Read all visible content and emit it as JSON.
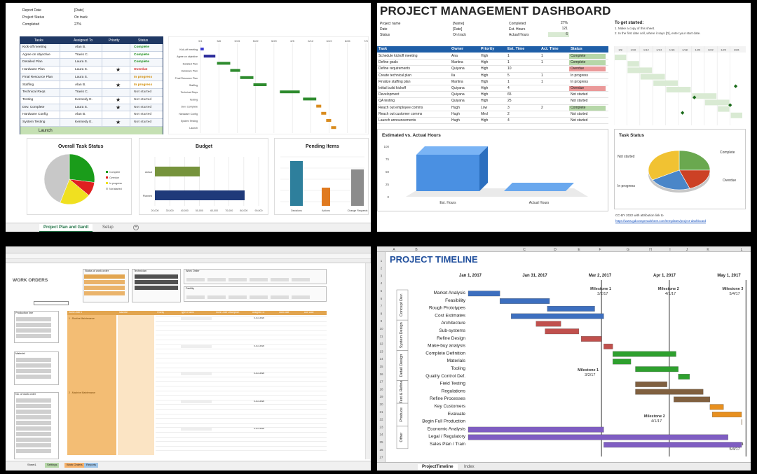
{
  "q1": {
    "info": {
      "report_date_label": "Report Date",
      "report_date_value": "[Date]",
      "project_status_label": "Project Status",
      "project_status_value": "On track",
      "completed_label": "Completed",
      "completed_value": "27%"
    },
    "table": {
      "headers": [
        "Tasks",
        "Assigned To",
        "Priority",
        "Status"
      ],
      "rows": [
        {
          "task": "Kick-off meeting",
          "assigned": "Alan B.",
          "star": false,
          "status": "Complete"
        },
        {
          "task": "Agree on objective",
          "assigned": "Travis C.",
          "star": false,
          "status": "Complete"
        },
        {
          "task": "Detailed Plan",
          "assigned": "Laura S.",
          "star": false,
          "status": "Complete"
        },
        {
          "task": "Hardware Plan",
          "assigned": "Laura S.",
          "star": true,
          "status": "Overdue"
        },
        {
          "task": "Final Resource Plan",
          "assigned": "Laura S.",
          "star": false,
          "status": "In progress"
        },
        {
          "task": "Staffing",
          "assigned": "Alan B.",
          "star": true,
          "status": "In progress"
        },
        {
          "task": "Technical Reqs",
          "assigned": "Travis C.",
          "star": false,
          "status": "Not started"
        },
        {
          "task": "Testing",
          "assigned": "Kennedy E.",
          "star": true,
          "status": "Not started"
        },
        {
          "task": "Dev. Complete",
          "assigned": "Laura S.",
          "star": true,
          "status": "Not started"
        },
        {
          "task": "Hardware Config",
          "assigned": "Alan B.",
          "star": false,
          "status": "Not started"
        },
        {
          "task": "System Testing",
          "assigned": "Kennedy E.",
          "star": true,
          "status": "Not started"
        }
      ],
      "launch": "Launch"
    },
    "gantt": {
      "dates": [
        "5/1",
        "5/8",
        "5/15",
        "5/22",
        "5/29",
        "6/5",
        "6/12",
        "6/19",
        "6/26",
        "7/3"
      ],
      "labels": [
        "Kick-off meeting",
        "Agree on objective",
        "Detailed Plan",
        "Hardware Plan",
        "Final Resource Plan",
        "Staffing",
        "Technical Reqs",
        "Testing",
        "Dev. Complete",
        "Hardware Config",
        "System Testing",
        "Launch"
      ],
      "bars": [
        [
          0,
          2,
          "#3b3bd1"
        ],
        [
          2,
          9,
          "#2a2a9a"
        ],
        [
          10,
          18,
          "#2e8b2e"
        ],
        [
          18,
          24,
          "#2e8b2e"
        ],
        [
          24,
          32,
          "#2e8b2e"
        ],
        [
          32,
          40,
          "#2e8b2e"
        ],
        [
          48,
          60,
          "#2e8b2e"
        ],
        [
          62,
          70,
          "#2e8b2e"
        ],
        [
          70,
          73,
          "#d98c1f"
        ],
        [
          73,
          76,
          "#d98c1f"
        ],
        [
          76,
          79,
          "#d98c1f"
        ],
        [
          79,
          82,
          "#d98c1f"
        ]
      ]
    },
    "status_chart": {
      "title": "Overall Task Status",
      "legend": [
        "Complete",
        "Overdue",
        "In progress",
        "Not started"
      ],
      "colors": [
        "#1a9c1a",
        "#e02020",
        "#f0e020",
        "#c8c8c8"
      ]
    },
    "budget_chart": {
      "title": "Budget",
      "categories": [
        "Actual",
        "Planned"
      ],
      "ticks": [
        "20,000",
        "30,000",
        "40,000",
        "50,000",
        "60,000",
        "70,000",
        "80,000",
        "90,000"
      ]
    },
    "pending_chart": {
      "title": "Pending Items",
      "categories": [
        "Decisions",
        "Actions",
        "Change Requests"
      ]
    },
    "tabs": [
      "Project Plan and Gantt",
      "Setup"
    ]
  },
  "q2": {
    "title": "PROJECT MANAGEMENT DASHBOARD",
    "info_left": [
      [
        "Project name",
        "[Name]"
      ],
      [
        "Date",
        "[Date]"
      ],
      [
        "Status",
        "On track"
      ]
    ],
    "info_right": [
      [
        "Completed",
        "27%"
      ],
      [
        "Est. Hours",
        "121"
      ],
      [
        "Actual Hours",
        "6"
      ]
    ],
    "get_started": {
      "title": "To get started:",
      "line1": "1. Make a copy of this sheet.",
      "line2": "2. In the first date cell, where it says [D], enter your start date."
    },
    "headers": [
      "Task",
      "Owner",
      "Priority",
      "Est. Time",
      "Act. Time",
      "Status"
    ],
    "rows": [
      [
        "Schedule kickoff meeting",
        "Ana",
        "High",
        "1",
        "1",
        "Complete"
      ],
      [
        "Define goals",
        "Martina",
        "High",
        "1",
        "1",
        "Complete"
      ],
      [
        "Define requirements",
        "Quiyana",
        "High",
        "10",
        "",
        "Overdue"
      ],
      [
        "Create technical plan",
        "Ila",
        "High",
        "5",
        "1",
        "In progress"
      ],
      [
        "Finalize staffing plan",
        "Martina",
        "High",
        "1",
        "1",
        "In progress"
      ],
      [
        "Initial build kickoff",
        "Quiyana",
        "High",
        "4",
        "",
        "Overdue"
      ],
      [
        "Development",
        "Quiyana",
        "High",
        "65",
        "",
        "Not started"
      ],
      [
        "QA testing",
        "Quiyana",
        "High",
        "25",
        "",
        "Not started"
      ],
      [
        "Reach out employee comms",
        "Hugh",
        "Low",
        "3",
        "2",
        "Complete"
      ],
      [
        "Reach out customer comms",
        "Hugh",
        "Med",
        "2",
        "",
        "Not started"
      ],
      [
        "Launch announcements",
        "Hugh",
        "High",
        "4",
        "",
        "Not started"
      ]
    ],
    "gantt_dates": [
      "1/8",
      "1/10",
      "1/12",
      "1/14",
      "1/16",
      "1/18",
      "1/20",
      "1/22",
      "1/24",
      "1/26"
    ],
    "chart_title": "Estimated vs. Actual Hours",
    "chart_ticks": [
      "100",
      "75",
      "50",
      "25",
      "0"
    ],
    "chart_categories": [
      "Est. Hours",
      "Actual Hours"
    ],
    "task_status_title": "Task Status",
    "pie_labels": {
      "not_started": "Not started",
      "in_progress": "In progress",
      "complete": "Complete",
      "overdue": "Overdue"
    },
    "footer": "CC-BY 2022 with attribution link to",
    "footer_link": "https://www.gdocsspreadsheet.com/templates/project-dashboard"
  },
  "q3": {
    "title": "WORK ORDERS",
    "filter_boxes": [
      "Status of work order",
      "Technician",
      "Work Order",
      "Facility",
      "Employee",
      "Task Type",
      "Period"
    ],
    "left_slicers": [
      "Production line",
      "Material",
      "No. of work order"
    ],
    "columns": [
      "Work Order #",
      "Machine",
      "Priority",
      "Type of Work",
      "Work Order Description",
      "Assigned To",
      "Start Date",
      "Due Date",
      "Status"
    ],
    "sections": [
      "1 - Routine Maintenance",
      "2 - Machine Maintenance"
    ],
    "sample_priority": [
      "1 - Normal",
      "2 - High",
      "3 - Optimal"
    ],
    "sample_desc": "Routine Maintenance",
    "sample_assigned": "Technician A",
    "sample_date": "3-Jun-2022",
    "tabs": [
      "Sheet1",
      "Settings",
      "Work Orders",
      "Reports"
    ]
  },
  "q4": {
    "title": "PROJECT TIMELINE",
    "col_letters": [
      "A",
      "B",
      "C",
      "D",
      "E",
      "F",
      "G",
      "H",
      "I",
      "J",
      "K",
      "L"
    ],
    "dates": [
      "Jan 1, 2017",
      "Jan 31, 2017",
      "Mar 2, 2017",
      "Apr 1, 2017",
      "May 1, 2017"
    ],
    "milestones": [
      {
        "title": "Milestone 1",
        "date": "3/2/17"
      },
      {
        "title": "Milestone 2",
        "date": "4/1/17"
      },
      {
        "title": "Milestone 3",
        "date": "5/4/17"
      }
    ],
    "phases": [
      "Concept Dev.",
      "System Design",
      "Detail Design",
      "Test & Refine",
      "Produce",
      "Other"
    ],
    "tasks": [
      "Market Analysis",
      "Feasibility",
      "Rough Prototypes",
      "Cost Estimates",
      "Architecture",
      "Sub-systems",
      "Refine Design",
      "Make-buy analysis",
      "Complete Definition",
      "Materials",
      "Tooling",
      "Quality Control Def.",
      "Field Testing",
      "Regulations",
      "Refine Processes",
      "Key Customers",
      "Evaluate",
      "Begin Full Production",
      "Economic Analysis",
      "Legal / Regulatory",
      "Sales Plan / Train"
    ],
    "tabs": [
      "ProjectTimeline",
      "Index"
    ]
  }
}
